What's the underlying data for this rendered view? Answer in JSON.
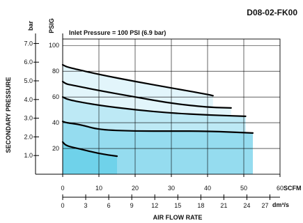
{
  "chart_data": {
    "type": "line",
    "title": "D08-02-FK00",
    "subtitle": "Inlet Pressure = 100 PSI (6.9 bar)",
    "ylabel": "SECONDARY PRESSURE",
    "xlabel": "AIR FLOW RATE",
    "y_unit_psig": "PSIG",
    "y_unit_bar": "bar",
    "x_unit_scfm": "SCFM",
    "x_unit_dm3s": "dm³/s",
    "xlim_scfm": [
      0,
      60
    ],
    "ylim_psig": [
      0,
      105
    ],
    "grid": true,
    "x_ticks_scfm": [
      0,
      10,
      20,
      30,
      40,
      50,
      60
    ],
    "x_ticks_dm3s": [
      0,
      3,
      6,
      9,
      12,
      15,
      18,
      21,
      24,
      27
    ],
    "y_ticks_psig": [
      20,
      40,
      60,
      80,
      100
    ],
    "y_ticks_bar": [
      "1.0",
      "2.0",
      "3.0",
      "4.0",
      "5.0",
      "6.0",
      "7.0"
    ],
    "series": [
      {
        "x": [
          0,
          1,
          3,
          10,
          20,
          30,
          40,
          41.5
        ],
        "values": [
          85,
          83.5,
          82,
          77.5,
          72,
          67,
          62,
          61
        ]
      },
      {
        "x": [
          0,
          1,
          3,
          10,
          20,
          30,
          40,
          46.5
        ],
        "values": [
          72,
          70,
          69,
          65,
          60,
          55,
          52,
          51.5
        ]
      },
      {
        "x": [
          0,
          1,
          3,
          10,
          20,
          30,
          40,
          50.5
        ],
        "values": [
          60,
          58.5,
          57,
          53.5,
          50,
          47.5,
          46,
          45
        ]
      },
      {
        "x": [
          0,
          1,
          5,
          10,
          20,
          30,
          40,
          52.5
        ],
        "values": [
          41,
          40,
          38.5,
          34.5,
          33.5,
          33.5,
          33.5,
          32
        ]
      },
      {
        "x": [
          0,
          1,
          5,
          10,
          15
        ],
        "values": [
          25,
          22,
          19.5,
          16,
          14
        ]
      }
    ],
    "shading": {
      "light": "#e2f5fb",
      "mid": "#bde9f5",
      "dark": "#95dcef",
      "darkest": "#6fd2ea",
      "line": "#000000"
    }
  }
}
